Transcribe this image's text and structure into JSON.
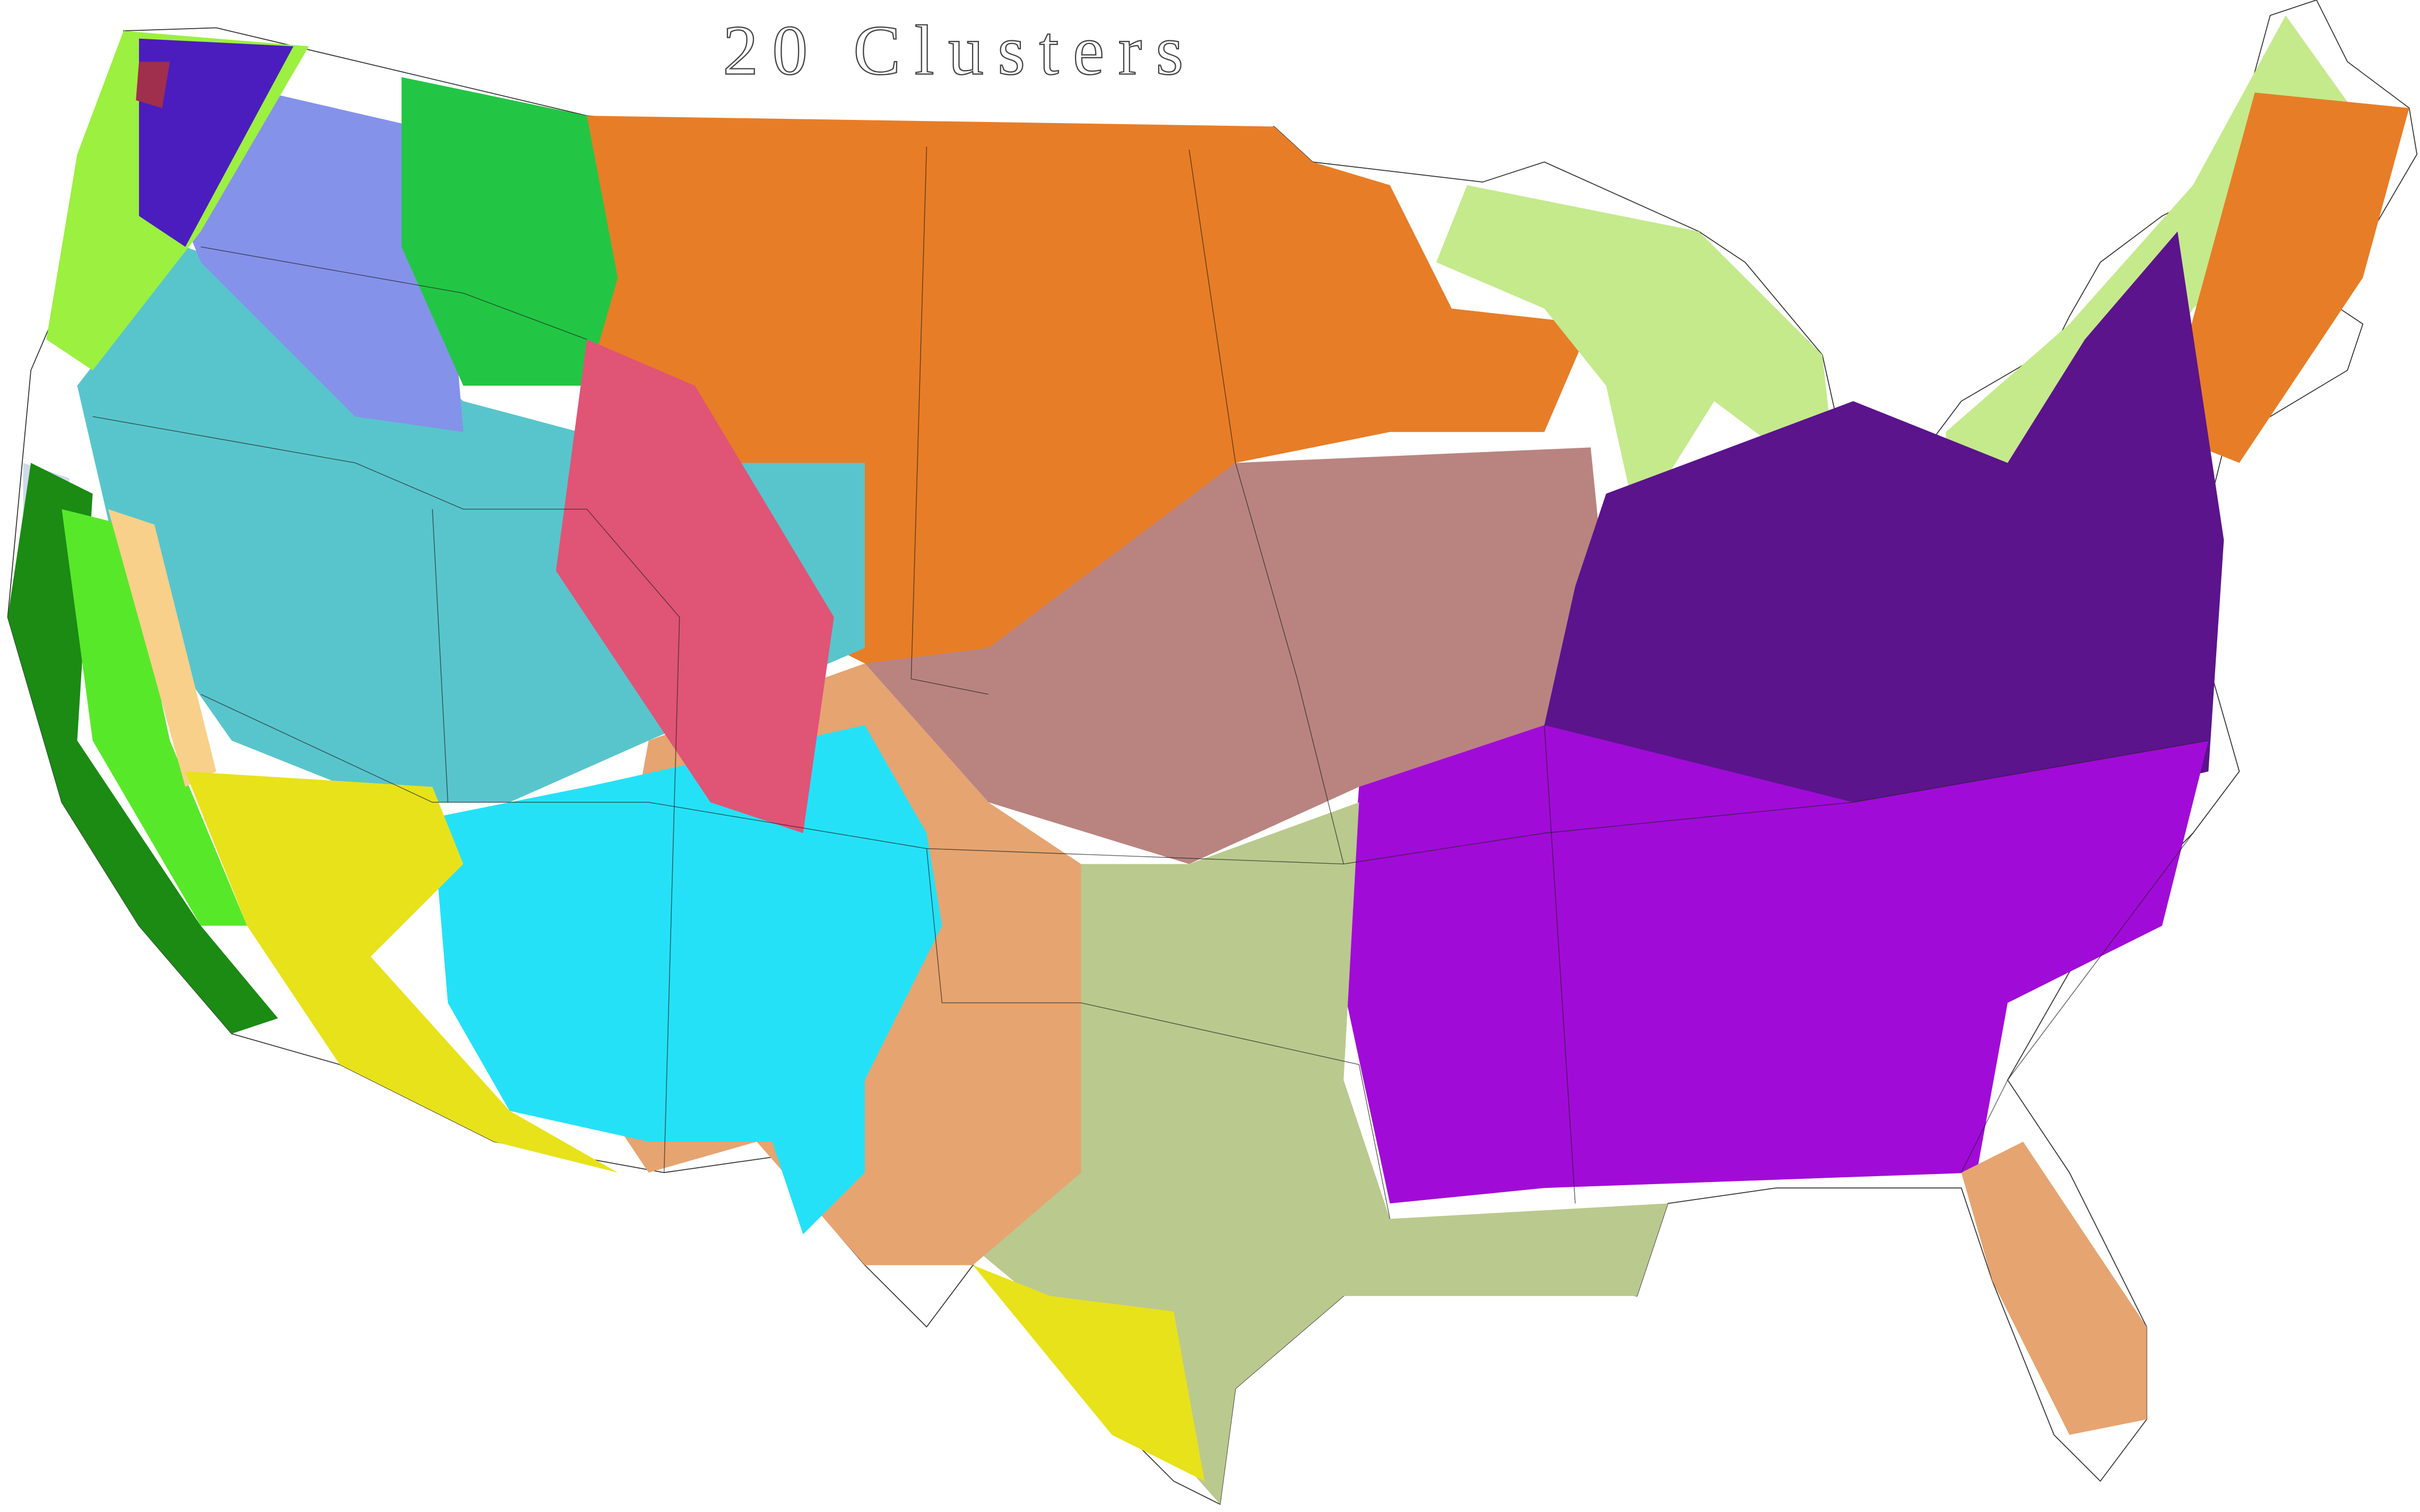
{
  "title": "20 Clusters",
  "clusters": {
    "orange": "#E87D27",
    "rose_tan": "#B98480",
    "dark_purple": "#5B148C",
    "magenta_purple": "#A10BD8",
    "sage": "#BAC98E",
    "light_tan": "#E6A470",
    "cyan": "#25E1F7",
    "teal": "#58C5CC",
    "pink": "#E05476",
    "lavender": "#8492EA",
    "light_green": "#C4EA8C",
    "green": "#22C644",
    "bright_green": "#58E82A",
    "dark_green": "#1B8B14",
    "yellow": "#E8E21A",
    "peach": "#F8D08A",
    "pale_blue": "#D0DAEA",
    "indigo": "#4B1DBE",
    "maroon": "#A02E4D",
    "lime": "#9CF040"
  }
}
